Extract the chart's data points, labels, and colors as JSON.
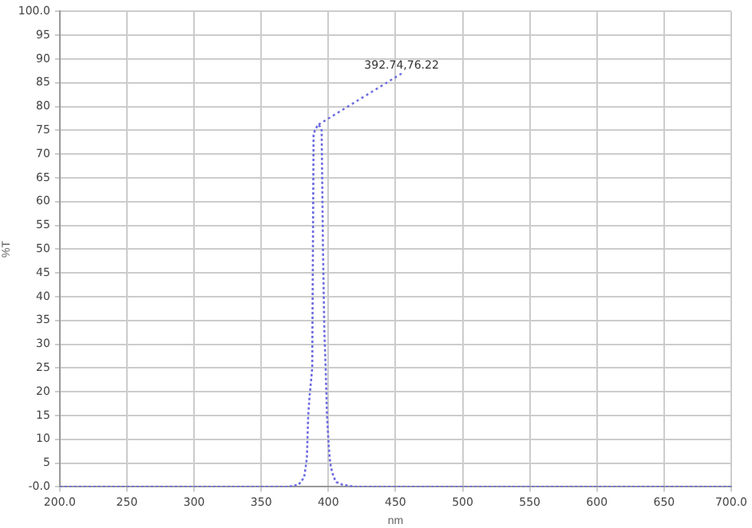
{
  "chart_data": {
    "type": "line",
    "xlabel": "nm",
    "ylabel": "%T",
    "series": [
      {
        "color": "#6a6ae0",
        "x": [
          200,
          300,
          370,
          378,
          382,
          384,
          385,
          386,
          387,
          388,
          389,
          390,
          392,
          393,
          395,
          396,
          397,
          398,
          399,
          400,
          401,
          402,
          404,
          406,
          410,
          420,
          500,
          600,
          700
        ],
        "values": [
          0,
          0,
          0,
          0.5,
          2,
          6,
          15,
          19,
          22,
          25,
          74,
          75,
          76,
          76.2,
          75,
          50,
          33,
          25,
          15,
          10,
          6,
          4,
          2,
          1,
          0.5,
          0,
          0,
          0,
          0
        ]
      }
    ],
    "annotations": [
      {
        "text": "392.74,76.22",
        "x": 392.74,
        "y": 76.22
      }
    ],
    "xlim": [
      200,
      700
    ],
    "xticks": [
      {
        "value": 200,
        "label": "200.0"
      },
      250,
      300,
      350,
      400,
      450,
      500,
      550,
      600,
      650,
      {
        "value": 700,
        "label": "700.0"
      }
    ],
    "ylim": [
      0,
      100
    ],
    "yticks": [
      {
        "value": 0,
        "label": "-0.0"
      },
      5,
      10,
      15,
      20,
      25,
      30,
      35,
      40,
      45,
      50,
      55,
      60,
      65,
      70,
      75,
      80,
      85,
      90,
      95,
      {
        "value": 100,
        "label": "100.0"
      }
    ],
    "grid": true,
    "line_style": "dotted",
    "marker": "none"
  }
}
